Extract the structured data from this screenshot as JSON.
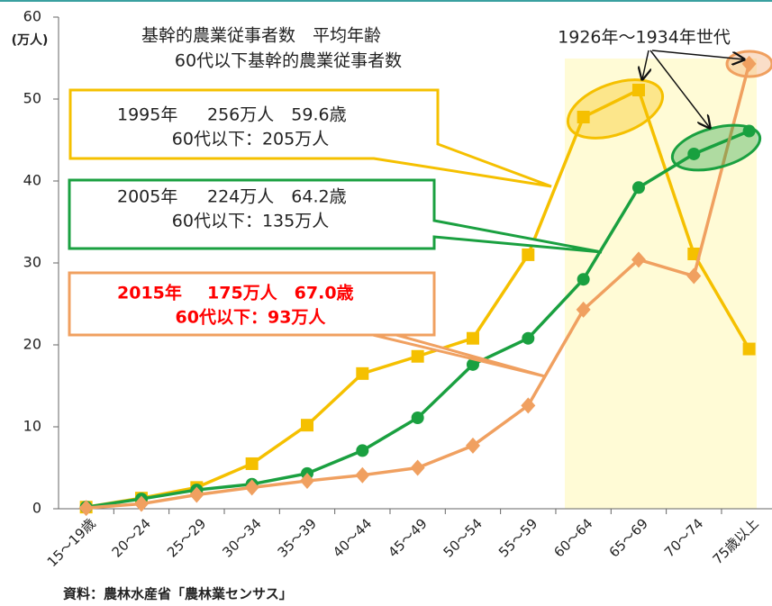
{
  "chart_data": {
    "type": "line",
    "title": [
      "基幹的農業従事者数　平均年齢",
      "60代以下基幹的農業従事者数"
    ],
    "y_axis_label": "(万人)",
    "categories": [
      "15～19歳",
      "20～24",
      "25～29",
      "30～34",
      "35～39",
      "40～44",
      "45～49",
      "50～54",
      "55～59",
      "60～64",
      "65～69",
      "70～74",
      "75歳以上"
    ],
    "series": [
      {
        "name": "1995年",
        "summary": "256万人　59.6歳",
        "sub": "60代以下：205万人",
        "color": "#f5c000",
        "marker": "square",
        "values": [
          0.2,
          1.3,
          2.6,
          5.5,
          10.2,
          16.5,
          18.6,
          20.8,
          31.0,
          47.8,
          51.1,
          31.1,
          19.5
        ]
      },
      {
        "name": "2005年",
        "summary": "224万人　64.2歳",
        "sub": "60代以下：135万人",
        "color": "#1aa040",
        "marker": "circle",
        "values": [
          0.2,
          1.2,
          2.3,
          3.0,
          4.3,
          7.1,
          11.1,
          17.6,
          20.8,
          28.0,
          39.2,
          43.3,
          46.1
        ]
      },
      {
        "name": "2015年",
        "summary": "175万人　67.0歳",
        "sub": "60代以下：93万人",
        "color": "#f0a060",
        "marker": "diamond",
        "values": [
          0.1,
          0.6,
          1.7,
          2.6,
          3.4,
          4.1,
          5.0,
          7.7,
          12.6,
          24.3,
          30.4,
          28.4,
          54.3
        ]
      }
    ],
    "annotation": "1926年～1934年世代",
    "source": "資料：農林水産省「農林業センサス」",
    "ylim": [
      0,
      60
    ],
    "yticks": [
      0,
      10,
      20,
      30,
      40,
      50,
      60
    ]
  }
}
